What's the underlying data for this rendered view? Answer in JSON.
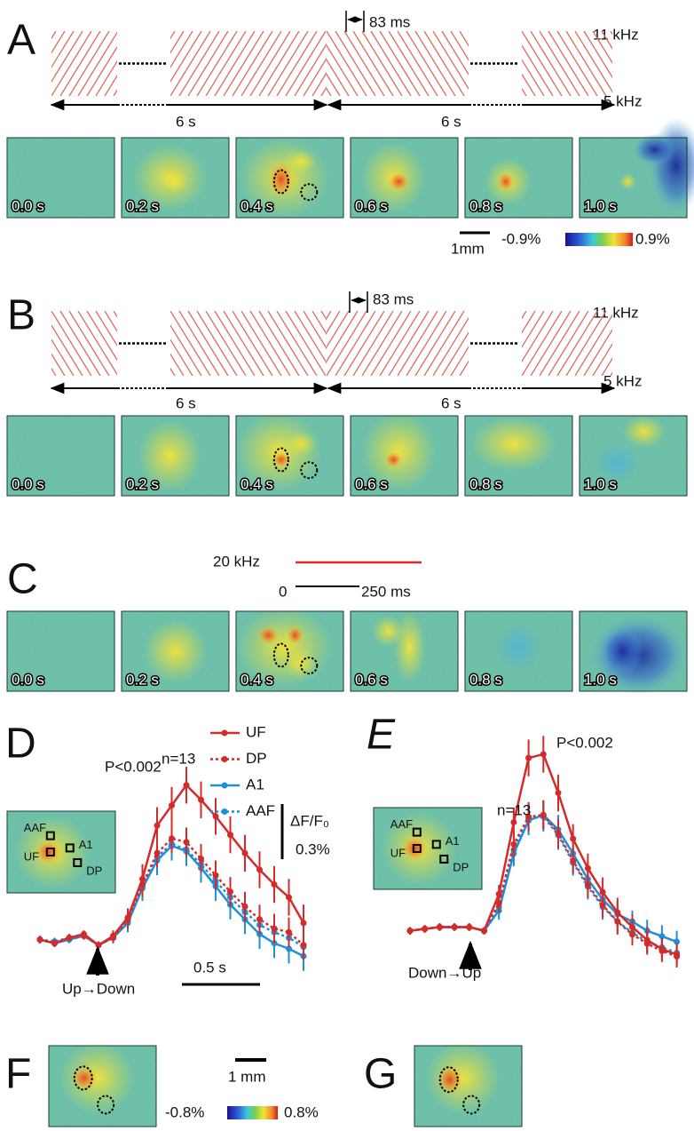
{
  "panel_labels": [
    "A",
    "B",
    "C",
    "D",
    "E",
    "F",
    "G"
  ],
  "panel_a": {
    "freq_high": "11 kHz",
    "freq_low": "5 kHz",
    "interval": "83 ms",
    "durations": [
      "6 s",
      "6 s"
    ],
    "frames": [
      "0.0 s",
      "0.2 s",
      "0.4 s",
      "0.6 s",
      "0.8 s",
      "1.0 s"
    ],
    "scale": "1mm",
    "color_min": "-0.9%",
    "color_max": "0.9%"
  },
  "panel_b": {
    "freq_high": "11 kHz",
    "freq_low": "5 kHz",
    "interval": "83 ms",
    "durations": [
      "6 s",
      "6 s"
    ],
    "frames": [
      "0.0 s",
      "0.2 s",
      "0.4 s",
      "0.6 s",
      "0.8 s",
      "1.0 s"
    ]
  },
  "panel_c": {
    "tone": "20 kHz",
    "time_start": "0",
    "time_end": "250 ms",
    "frames": [
      "0.0 s",
      "0.2 s",
      "0.4 s",
      "0.6 s",
      "0.8 s",
      "1.0 s"
    ]
  },
  "chart_data": [
    {
      "type": "line",
      "legend": true,
      "ylim": [
        -0.2,
        1.1
      ],
      "annotation_p": "P<0.002",
      "annotation_n": "n=13",
      "stimulus": "Up→Down",
      "scale_x_label": "0.5 s",
      "scale_y_label": "ΔF/F₀",
      "scale_y": {
        "value": 0.3,
        "label": "0.3%"
      },
      "inset_labels": [
        "AAF",
        "A1",
        "UF",
        "DP"
      ],
      "series": [
        {
          "name": "UF",
          "color": "#d42a2a",
          "dash": false,
          "values": [
            0.01,
            -0.01,
            0.02,
            0.04,
            -0.02,
            0.03,
            0.13,
            0.34,
            0.63,
            0.74,
            0.85,
            0.77,
            0.68,
            0.58,
            0.48,
            0.39,
            0.31,
            0.24,
            0.1
          ],
          "errors": [
            0.02,
            0.02,
            0.02,
            0.02,
            0.02,
            0.03,
            0.05,
            0.08,
            0.1,
            0.1,
            0.1,
            0.1,
            0.1,
            0.1,
            0.1,
            0.1,
            0.1,
            0.1,
            0.1
          ]
        },
        {
          "name": "DP",
          "color": "#d42a2a",
          "dash": true,
          "values": [
            0.01,
            -0.01,
            0.02,
            0.03,
            -0.02,
            0.02,
            0.12,
            0.31,
            0.48,
            0.56,
            0.54,
            0.45,
            0.36,
            0.27,
            0.19,
            0.12,
            0.07,
            0.05,
            -0.02
          ],
          "errors": [
            0.02,
            0.02,
            0.02,
            0.02,
            0.02,
            0.03,
            0.05,
            0.07,
            0.08,
            0.08,
            0.08,
            0.08,
            0.08,
            0.08,
            0.08,
            0.08,
            0.08,
            0.08,
            0.08
          ]
        },
        {
          "name": "A1",
          "color": "#1f8fd6",
          "dash": false,
          "values": [
            0.01,
            -0.01,
            0.01,
            0.03,
            -0.02,
            0.02,
            0.1,
            0.29,
            0.44,
            0.52,
            0.49,
            0.4,
            0.3,
            0.2,
            0.12,
            0.04,
            -0.01,
            -0.04,
            -0.08
          ],
          "errors": [
            0.02,
            0.02,
            0.02,
            0.02,
            0.02,
            0.03,
            0.05,
            0.07,
            0.08,
            0.08,
            0.08,
            0.08,
            0.08,
            0.08,
            0.08,
            0.08,
            0.08,
            0.08,
            0.08
          ]
        },
        {
          "name": "AAF",
          "color": "#1f8fd6",
          "dash": true,
          "values": [
            0.01,
            0.0,
            0.02,
            0.03,
            -0.02,
            0.02,
            0.11,
            0.3,
            0.46,
            0.53,
            0.5,
            0.42,
            0.33,
            0.24,
            0.16,
            0.09,
            0.05,
            0.02,
            -0.03
          ],
          "errors": [
            0.02,
            0.02,
            0.02,
            0.02,
            0.02,
            0.03,
            0.05,
            0.07,
            0.08,
            0.08,
            0.08,
            0.08,
            0.08,
            0.08,
            0.08,
            0.08,
            0.08,
            0.08,
            0.08
          ]
        }
      ]
    },
    {
      "type": "line",
      "ylim": [
        -0.2,
        1.1
      ],
      "annotation_p": "P<0.002",
      "annotation_n": "n=13",
      "stimulus": "Down→Up",
      "inset_labels": [
        "AAF",
        "A1",
        "UF",
        "DP"
      ],
      "series": [
        {
          "color": "#d42a2a",
          "dash": false,
          "values": [
            0.0,
            0.01,
            0.02,
            0.02,
            0.02,
            0.0,
            0.2,
            0.59,
            0.94,
            0.96,
            0.75,
            0.5,
            0.34,
            0.21,
            0.1,
            0.02,
            -0.05,
            -0.1,
            -0.13
          ],
          "errors": [
            0.02,
            0.02,
            0.02,
            0.02,
            0.02,
            0.02,
            0.05,
            0.08,
            0.1,
            0.1,
            0.1,
            0.08,
            0.08,
            0.08,
            0.08,
            0.07,
            0.07,
            0.06,
            0.06
          ]
        },
        {
          "color": "#d42a2a",
          "dash": true,
          "values": [
            0.0,
            0.01,
            0.02,
            0.02,
            0.02,
            0.0,
            0.15,
            0.47,
            0.62,
            0.63,
            0.53,
            0.38,
            0.25,
            0.14,
            0.05,
            -0.02,
            -0.07,
            -0.11,
            -0.14
          ],
          "errors": [
            0.02,
            0.02,
            0.02,
            0.02,
            0.02,
            0.02,
            0.05,
            0.07,
            0.08,
            0.08,
            0.08,
            0.07,
            0.07,
            0.07,
            0.07,
            0.06,
            0.06,
            0.06,
            0.06
          ]
        },
        {
          "color": "#1f8fd6",
          "dash": false,
          "values": [
            0.0,
            0.01,
            0.02,
            0.02,
            0.02,
            0.0,
            0.11,
            0.42,
            0.6,
            0.63,
            0.55,
            0.42,
            0.28,
            0.17,
            0.09,
            0.05,
            0.0,
            -0.03,
            -0.06
          ],
          "errors": [
            0.02,
            0.02,
            0.02,
            0.02,
            0.02,
            0.02,
            0.05,
            0.07,
            0.08,
            0.08,
            0.08,
            0.07,
            0.07,
            0.07,
            0.07,
            0.06,
            0.06,
            0.06,
            0.06
          ]
        },
        {
          "color": "#1f8fd6",
          "dash": true,
          "values": [
            0.0,
            0.01,
            0.02,
            0.02,
            0.02,
            0.0,
            0.13,
            0.44,
            0.61,
            0.62,
            0.52,
            0.37,
            0.24,
            0.13,
            0.05,
            -0.01,
            -0.06,
            -0.09,
            -0.12
          ],
          "errors": [
            0.02,
            0.02,
            0.02,
            0.02,
            0.02,
            0.02,
            0.05,
            0.07,
            0.08,
            0.08,
            0.08,
            0.07,
            0.07,
            0.07,
            0.07,
            0.06,
            0.06,
            0.06,
            0.06
          ]
        }
      ]
    }
  ],
  "panel_f": {
    "scale": "1 mm",
    "color_min": "-0.8%",
    "color_max": "0.8%"
  }
}
